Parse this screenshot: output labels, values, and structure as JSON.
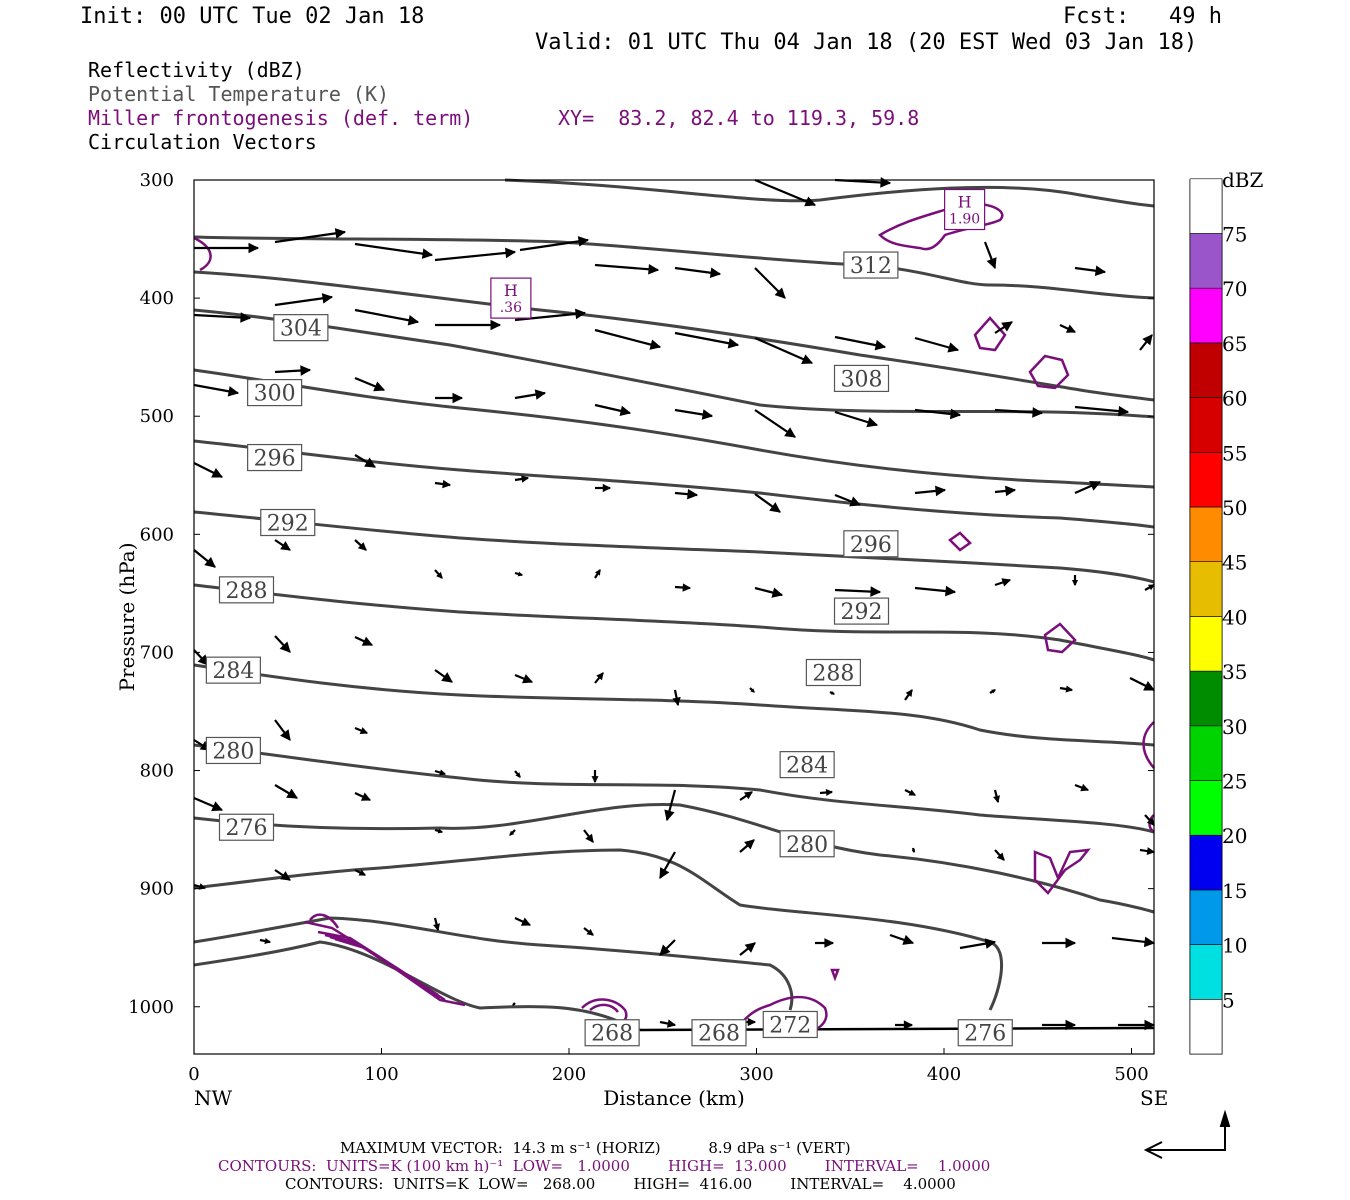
{
  "header": {
    "init": "Init: 00 UTC Tue 02 Jan 18",
    "fcst": "Fcst:   49 h",
    "valid": "Valid: 01 UTC Thu 04 Jan 18 (20 EST Wed 03 Jan 18)"
  },
  "legend": {
    "reflectivity": "Reflectivity (dBZ)",
    "theta": "Potential Temperature (K)",
    "miller": "Miller frontogenesis (def. term)",
    "xy": "XY=  83.2, 82.4 to 119.3, 59.8",
    "vectors": "Circulation Vectors"
  },
  "axes": {
    "ylabel": "Pressure (hPa)",
    "xlabel": "Distance (km)",
    "left_end": "NW",
    "right_end": "SE",
    "x_ticks": [
      "0",
      "100",
      "200",
      "300",
      "400",
      "500"
    ],
    "y_ticks": [
      "300",
      "400",
      "500",
      "600",
      "700",
      "800",
      "900",
      "1000"
    ]
  },
  "colorbar": {
    "title": "dBZ",
    "levels": [
      "5",
      "10",
      "15",
      "20",
      "25",
      "30",
      "35",
      "40",
      "45",
      "50",
      "55",
      "60",
      "65",
      "70",
      "75"
    ],
    "colors": [
      "#00e0e0",
      "#0098e8",
      "#0000f0",
      "#00ff00",
      "#00d400",
      "#008c00",
      "#ffff00",
      "#e6bd00",
      "#ff8c00",
      "#ff0000",
      "#d60000",
      "#c00000",
      "#ff00ff",
      "#9955c9",
      "#ffffff"
    ]
  },
  "footer": {
    "max_vector": "MAXIMUM VECTOR:  14.3 m s⁻¹ (HORIZ)          8.9 dPa s⁻¹ (VERT)",
    "contours_purple": "CONTOURS:  UNITS=K (100 km h)⁻¹  LOW=   1.0000        HIGH=  13.000        INTERVAL=    1.0000",
    "contours_black": "CONTOURS:  UNITS=K  LOW=   268.00        HIGH=  416.00        INTERVAL=    4.0000"
  },
  "chart_data": {
    "type": "line",
    "title": "Reflectivity (dBZ) / Potential Temperature (K) / Miller frontogenesis (def. term) / Circulation Vectors",
    "xlabel": "Distance (km)",
    "ylabel": "Pressure (hPa)",
    "xlim": [
      0,
      512
    ],
    "ylim": [
      1040,
      300
    ],
    "y_scale": "linear (inverted)",
    "theta_labels": [
      {
        "text": "304",
        "x": 57,
        "p": 425
      },
      {
        "text": "300",
        "x": 43,
        "p": 480
      },
      {
        "text": "296",
        "x": 43,
        "p": 535
      },
      {
        "text": "292",
        "x": 50,
        "p": 590
      },
      {
        "text": "288",
        "x": 28,
        "p": 647
      },
      {
        "text": "284",
        "x": 21,
        "p": 715
      },
      {
        "text": "280",
        "x": 21,
        "p": 783
      },
      {
        "text": "276",
        "x": 28,
        "p": 848
      },
      {
        "text": "312",
        "x": 361,
        "p": 372
      },
      {
        "text": "308",
        "x": 356,
        "p": 468
      },
      {
        "text": "296",
        "x": 361,
        "p": 608
      },
      {
        "text": "292",
        "x": 356,
        "p": 665
      },
      {
        "text": "288",
        "x": 341,
        "p": 717
      },
      {
        "text": "284",
        "x": 327,
        "p": 795
      },
      {
        "text": "280",
        "x": 327,
        "p": 862
      },
      {
        "text": "268",
        "x": 223,
        "p": 1022
      },
      {
        "text": "268",
        "x": 280,
        "p": 1022
      },
      {
        "text": "272",
        "x": 318,
        "p": 1015
      },
      {
        "text": "276",
        "x": 422,
        "p": 1022
      }
    ],
    "frontogenesis_maxima": [
      {
        "label": "H",
        "value": ".36",
        "x": 169,
        "p": 400
      },
      {
        "label": "H",
        "value": "1.90",
        "x": 411,
        "p": 325
      }
    ]
  }
}
